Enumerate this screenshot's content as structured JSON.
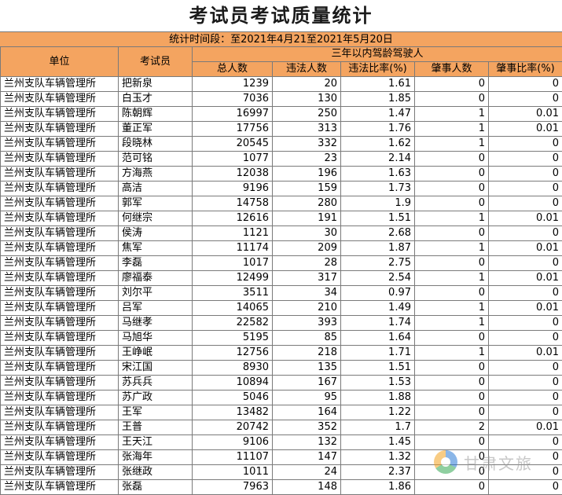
{
  "title": "考试员考试质量统计",
  "period": "统计时间段：至2021年4月21至2021年5月20日",
  "headers": {
    "unit": "单位",
    "examiner": "考试员",
    "group": "三年以内驾龄驾驶人",
    "total": "总人数",
    "violators": "违法人数",
    "violation_rate": "违法比率(%)",
    "accident_count": "肇事人数",
    "accident_rate": "肇事比率(%)"
  },
  "rows": [
    {
      "unit": "兰州支队车辆管理所",
      "examiner": "把新泉",
      "total": "1239",
      "violators": "20",
      "violation_rate": "1.61",
      "accident_count": "0",
      "accident_rate": "0"
    },
    {
      "unit": "兰州支队车辆管理所",
      "examiner": "白玉才",
      "total": "7036",
      "violators": "130",
      "violation_rate": "1.85",
      "accident_count": "0",
      "accident_rate": "0"
    },
    {
      "unit": "兰州支队车辆管理所",
      "examiner": "陈朝辉",
      "total": "16997",
      "violators": "250",
      "violation_rate": "1.47",
      "accident_count": "1",
      "accident_rate": "0.01"
    },
    {
      "unit": "兰州支队车辆管理所",
      "examiner": "董正军",
      "total": "17756",
      "violators": "313",
      "violation_rate": "1.76",
      "accident_count": "1",
      "accident_rate": "0.01"
    },
    {
      "unit": "兰州支队车辆管理所",
      "examiner": "段晓林",
      "total": "20545",
      "violators": "332",
      "violation_rate": "1.62",
      "accident_count": "1",
      "accident_rate": "0"
    },
    {
      "unit": "兰州支队车辆管理所",
      "examiner": "范可铭",
      "total": "1077",
      "violators": "23",
      "violation_rate": "2.14",
      "accident_count": "0",
      "accident_rate": "0"
    },
    {
      "unit": "兰州支队车辆管理所",
      "examiner": "方海燕",
      "total": "12038",
      "violators": "196",
      "violation_rate": "1.63",
      "accident_count": "0",
      "accident_rate": "0"
    },
    {
      "unit": "兰州支队车辆管理所",
      "examiner": "高洁",
      "total": "9196",
      "violators": "159",
      "violation_rate": "1.73",
      "accident_count": "0",
      "accident_rate": "0"
    },
    {
      "unit": "兰州支队车辆管理所",
      "examiner": "郭军",
      "total": "14758",
      "violators": "280",
      "violation_rate": "1.9",
      "accident_count": "0",
      "accident_rate": "0"
    },
    {
      "unit": "兰州支队车辆管理所",
      "examiner": "何继宗",
      "total": "12616",
      "violators": "191",
      "violation_rate": "1.51",
      "accident_count": "1",
      "accident_rate": "0.01"
    },
    {
      "unit": "兰州支队车辆管理所",
      "examiner": "侯涛",
      "total": "1121",
      "violators": "30",
      "violation_rate": "2.68",
      "accident_count": "0",
      "accident_rate": "0"
    },
    {
      "unit": "兰州支队车辆管理所",
      "examiner": "焦军",
      "total": "11174",
      "violators": "209",
      "violation_rate": "1.87",
      "accident_count": "1",
      "accident_rate": "0.01"
    },
    {
      "unit": "兰州支队车辆管理所",
      "examiner": "李磊",
      "total": "1017",
      "violators": "28",
      "violation_rate": "2.75",
      "accident_count": "0",
      "accident_rate": "0"
    },
    {
      "unit": "兰州支队车辆管理所",
      "examiner": "廖福泰",
      "total": "12499",
      "violators": "317",
      "violation_rate": "2.54",
      "accident_count": "1",
      "accident_rate": "0.01"
    },
    {
      "unit": "兰州支队车辆管理所",
      "examiner": "刘尔平",
      "total": "3511",
      "violators": "34",
      "violation_rate": "0.97",
      "accident_count": "0",
      "accident_rate": "0"
    },
    {
      "unit": "兰州支队车辆管理所",
      "examiner": "吕军",
      "total": "14065",
      "violators": "210",
      "violation_rate": "1.49",
      "accident_count": "1",
      "accident_rate": "0.01"
    },
    {
      "unit": "兰州支队车辆管理所",
      "examiner": "马继孝",
      "total": "22582",
      "violators": "393",
      "violation_rate": "1.74",
      "accident_count": "1",
      "accident_rate": "0"
    },
    {
      "unit": "兰州支队车辆管理所",
      "examiner": "马旭华",
      "total": "5195",
      "violators": "85",
      "violation_rate": "1.64",
      "accident_count": "0",
      "accident_rate": "0"
    },
    {
      "unit": "兰州支队车辆管理所",
      "examiner": "王峥岷",
      "total": "12756",
      "violators": "218",
      "violation_rate": "1.71",
      "accident_count": "1",
      "accident_rate": "0.01"
    },
    {
      "unit": "兰州支队车辆管理所",
      "examiner": "宋江国",
      "total": "8930",
      "violators": "135",
      "violation_rate": "1.51",
      "accident_count": "0",
      "accident_rate": "0"
    },
    {
      "unit": "兰州支队车辆管理所",
      "examiner": "苏兵兵",
      "total": "10894",
      "violators": "167",
      "violation_rate": "1.53",
      "accident_count": "0",
      "accident_rate": "0"
    },
    {
      "unit": "兰州支队车辆管理所",
      "examiner": "苏广政",
      "total": "5046",
      "violators": "95",
      "violation_rate": "1.88",
      "accident_count": "0",
      "accident_rate": "0"
    },
    {
      "unit": "兰州支队车辆管理所",
      "examiner": "王军",
      "total": "13482",
      "violators": "164",
      "violation_rate": "1.22",
      "accident_count": "0",
      "accident_rate": "0"
    },
    {
      "unit": "兰州支队车辆管理所",
      "examiner": "王普",
      "total": "20742",
      "violators": "352",
      "violation_rate": "1.7",
      "accident_count": "2",
      "accident_rate": "0.01"
    },
    {
      "unit": "兰州支队车辆管理所",
      "examiner": "王天江",
      "total": "9106",
      "violators": "132",
      "violation_rate": "1.45",
      "accident_count": "0",
      "accident_rate": "0"
    },
    {
      "unit": "兰州支队车辆管理所",
      "examiner": "张海年",
      "total": "11107",
      "violators": "147",
      "violation_rate": "1.32",
      "accident_count": "0",
      "accident_rate": "0"
    },
    {
      "unit": "兰州支队车辆管理所",
      "examiner": "张继政",
      "total": "1011",
      "violators": "24",
      "violation_rate": "2.37",
      "accident_count": "0",
      "accident_rate": "0"
    },
    {
      "unit": "兰州支队车辆管理所",
      "examiner": "张磊",
      "total": "7963",
      "violators": "148",
      "violation_rate": "1.86",
      "accident_count": "0",
      "accident_rate": "0"
    }
  ],
  "watermark": {
    "text": "甘肃文旅",
    "icon": "swirl-logo-icon"
  }
}
